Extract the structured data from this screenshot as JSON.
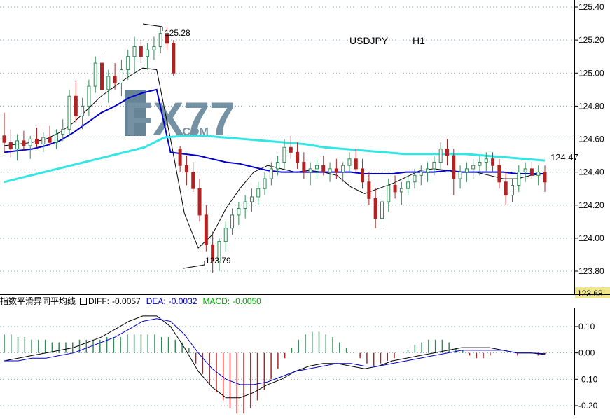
{
  "watermark": {
    "text": "FX77",
    "sub": ".COM"
  },
  "chart_data": [
    {
      "type": "candlestick",
      "title": "USDJPY",
      "timeframe": "H1",
      "ylim": [
        123.68,
        125.44
      ],
      "yticks": [
        123.8,
        124.0,
        124.2,
        124.4,
        124.6,
        124.8,
        125.0,
        125.2,
        125.4
      ],
      "ytick_labels": [
        "123.80",
        "124.00",
        "124.20",
        "124.40",
        "124.60",
        "124.80",
        "125.00",
        "125.20",
        "125.40"
      ],
      "axis_bottom_label": "123.68",
      "annotations": [
        {
          "text": "125.28",
          "value": 125.28,
          "kind": "high"
        },
        {
          "text": "123.79",
          "value": 123.79,
          "kind": "low"
        },
        {
          "text": "124.47",
          "value": 124.47,
          "kind": "ma-level"
        }
      ],
      "ohlc": [
        [
          124.62,
          124.76,
          124.52,
          124.58
        ],
        [
          124.58,
          124.66,
          124.49,
          124.54
        ],
        [
          124.54,
          124.63,
          124.47,
          124.59
        ],
        [
          124.59,
          124.65,
          124.53,
          124.56
        ],
        [
          124.56,
          124.62,
          124.48,
          124.6
        ],
        [
          124.6,
          124.67,
          124.55,
          124.57
        ],
        [
          124.57,
          124.64,
          124.52,
          124.61
        ],
        [
          124.61,
          124.68,
          124.56,
          124.58
        ],
        [
          124.58,
          124.66,
          124.54,
          124.63
        ],
        [
          124.63,
          124.72,
          124.59,
          124.66
        ],
        [
          124.66,
          124.9,
          124.62,
          124.86
        ],
        [
          124.86,
          124.95,
          124.7,
          124.74
        ],
        [
          124.74,
          124.85,
          124.66,
          124.8
        ],
        [
          124.8,
          124.96,
          124.74,
          124.92
        ],
        [
          124.92,
          125.1,
          124.88,
          125.06
        ],
        [
          125.06,
          125.12,
          124.86,
          124.9
        ],
        [
          124.9,
          125.02,
          124.82,
          124.98
        ],
        [
          124.98,
          125.06,
          124.9,
          124.94
        ],
        [
          124.94,
          125.08,
          124.86,
          125.02
        ],
        [
          125.02,
          125.14,
          124.96,
          125.1
        ],
        [
          125.1,
          125.22,
          125.0,
          125.16
        ],
        [
          125.16,
          125.2,
          125.06,
          125.1
        ],
        [
          125.1,
          125.18,
          125.02,
          125.14
        ],
        [
          125.14,
          125.22,
          125.08,
          125.16
        ],
        [
          125.16,
          125.28,
          125.12,
          125.24
        ],
        [
          125.24,
          125.28,
          125.14,
          125.18
        ],
        [
          125.18,
          125.2,
          124.98,
          125.0
        ],
        [
          124.54,
          124.56,
          124.4,
          124.44
        ],
        [
          124.44,
          124.5,
          124.32,
          124.4
        ],
        [
          124.4,
          124.46,
          124.28,
          124.3
        ],
        [
          124.3,
          124.36,
          124.1,
          124.14
        ],
        [
          124.14,
          124.2,
          123.92,
          123.96
        ],
        [
          123.96,
          124.04,
          123.79,
          123.86
        ],
        [
          123.86,
          124.0,
          123.8,
          123.98
        ],
        [
          123.98,
          124.1,
          123.92,
          124.06
        ],
        [
          124.06,
          124.18,
          124.02,
          124.14
        ],
        [
          124.14,
          124.22,
          124.08,
          124.18
        ],
        [
          124.18,
          124.26,
          124.12,
          124.22
        ],
        [
          124.22,
          124.3,
          124.16,
          124.25
        ],
        [
          124.25,
          124.34,
          124.2,
          124.3
        ],
        [
          124.3,
          124.4,
          124.26,
          124.36
        ],
        [
          124.36,
          124.46,
          124.32,
          124.42
        ],
        [
          124.42,
          124.5,
          124.38,
          124.46
        ],
        [
          124.46,
          124.6,
          124.42,
          124.55
        ],
        [
          124.55,
          124.62,
          124.48,
          124.52
        ],
        [
          124.52,
          124.58,
          124.42,
          124.46
        ],
        [
          124.46,
          124.52,
          124.36,
          124.4
        ],
        [
          124.4,
          124.46,
          124.32,
          124.42
        ],
        [
          124.42,
          124.48,
          124.36,
          124.44
        ],
        [
          124.44,
          124.5,
          124.38,
          124.4
        ],
        [
          124.4,
          124.46,
          124.34,
          124.42
        ],
        [
          124.42,
          124.48,
          124.36,
          124.4
        ],
        [
          124.4,
          124.46,
          124.34,
          124.44
        ],
        [
          124.44,
          124.52,
          124.4,
          124.48
        ],
        [
          124.48,
          124.54,
          124.4,
          124.42
        ],
        [
          124.42,
          124.48,
          124.3,
          124.34
        ],
        [
          124.34,
          124.4,
          124.2,
          124.24
        ],
        [
          124.24,
          124.3,
          124.06,
          124.12
        ],
        [
          124.12,
          124.26,
          124.08,
          124.22
        ],
        [
          124.22,
          124.36,
          124.16,
          124.32
        ],
        [
          124.32,
          124.38,
          124.24,
          124.28
        ],
        [
          124.28,
          124.34,
          124.2,
          124.3
        ],
        [
          124.3,
          124.38,
          124.26,
          124.34
        ],
        [
          124.34,
          124.42,
          124.3,
          124.38
        ],
        [
          124.38,
          124.44,
          124.32,
          124.4
        ],
        [
          124.4,
          124.46,
          124.34,
          124.42
        ],
        [
          124.42,
          124.5,
          124.38,
          124.46
        ],
        [
          124.46,
          124.58,
          124.42,
          124.54
        ],
        [
          124.54,
          124.6,
          124.44,
          124.5
        ],
        [
          124.5,
          124.54,
          124.26,
          124.36
        ],
        [
          124.36,
          124.44,
          124.3,
          124.4
        ],
        [
          124.4,
          124.46,
          124.34,
          124.42
        ],
        [
          124.42,
          124.48,
          124.36,
          124.44
        ],
        [
          124.44,
          124.5,
          124.38,
          124.46
        ],
        [
          124.46,
          124.52,
          124.4,
          124.48
        ],
        [
          124.48,
          124.52,
          124.4,
          124.44
        ],
        [
          124.44,
          124.48,
          124.3,
          124.34
        ],
        [
          124.34,
          124.4,
          124.2,
          124.26
        ],
        [
          124.26,
          124.36,
          124.22,
          124.32
        ],
        [
          124.32,
          124.44,
          124.28,
          124.4
        ],
        [
          124.4,
          124.46,
          124.34,
          124.42
        ],
        [
          124.42,
          124.46,
          124.36,
          124.38
        ],
        [
          124.38,
          124.44,
          124.32,
          124.4
        ],
        [
          124.4,
          124.44,
          124.28,
          124.34
        ]
      ],
      "ma_series": [
        {
          "color": "#000000",
          "values": [
            124.56,
            124.57,
            124.58,
            124.6,
            124.64,
            124.7,
            124.78,
            124.86,
            124.92,
            124.98,
            125.03,
            125.02,
            124.6,
            124.15,
            123.94,
            124.02,
            124.18,
            124.3,
            124.4,
            124.44,
            124.42,
            124.4,
            124.41,
            124.4,
            124.38,
            124.31,
            124.27,
            124.3,
            124.33,
            124.37,
            124.41,
            124.42,
            124.41,
            124.4,
            124.4,
            124.38,
            124.36,
            124.36,
            124.38,
            124.39
          ]
        },
        {
          "color": "#0000cc",
          "values": [
            124.52,
            124.53,
            124.54,
            124.56,
            124.59,
            124.64,
            124.7,
            124.76,
            124.8,
            124.85,
            124.88,
            124.9,
            124.52,
            124.51,
            124.5,
            124.48,
            124.46,
            124.45,
            124.43,
            124.41,
            124.4,
            124.4,
            124.4,
            124.4,
            124.4,
            124.4,
            124.39,
            124.39,
            124.39,
            124.4,
            124.4,
            124.4,
            124.41,
            124.4,
            124.4,
            124.4,
            124.4,
            124.39,
            124.39,
            124.39
          ]
        },
        {
          "color": "#33e6e6",
          "values": [
            124.34,
            124.37,
            124.4,
            124.43,
            124.46,
            124.49,
            124.52,
            124.55,
            124.61,
            124.62,
            124.62,
            124.61,
            124.6,
            124.59,
            124.58,
            124.57,
            124.55,
            124.54,
            124.53,
            124.52,
            124.51,
            124.51,
            124.51,
            124.51,
            124.5,
            124.49,
            124.48,
            124.47
          ]
        }
      ]
    },
    {
      "type": "bar",
      "title": "指数平滑异同平均线",
      "diff_label": "DIFF:",
      "diff_value": "-0.0057",
      "dea_label": "DEA:",
      "dea_value": "-0.0032",
      "macd_label": "MACD:",
      "macd_value": "-0.0050",
      "ylim": [
        -0.24,
        0.16
      ],
      "yticks": [
        -0.2,
        -0.1,
        0.0,
        0.1
      ],
      "ytick_labels": [
        "-0.20",
        "-0.10",
        "0.00",
        "0.10"
      ],
      "macd": [
        0.07,
        0.07,
        0.06,
        0.06,
        0.05,
        0.05,
        0.05,
        0.04,
        0.04,
        0.04,
        0.04,
        0.05,
        0.05,
        0.05,
        0.05,
        0.06,
        0.06,
        0.06,
        0.07,
        0.07,
        0.07,
        0.07,
        0.07,
        0.06,
        0.06,
        0.05,
        0.04,
        0.02,
        -0.04,
        -0.08,
        -0.12,
        -0.15,
        -0.18,
        -0.21,
        -0.23,
        -0.23,
        -0.21,
        -0.18,
        -0.14,
        -0.1,
        -0.06,
        -0.02,
        0.02,
        0.05,
        0.07,
        0.08,
        0.08,
        0.07,
        0.06,
        0.04,
        0.02,
        0.0,
        -0.02,
        -0.04,
        -0.05,
        -0.04,
        -0.03,
        -0.02,
        0.0,
        0.01,
        0.03,
        0.04,
        0.05,
        0.05,
        0.05,
        0.04,
        0.02,
        0.01,
        -0.01,
        -0.02,
        -0.02,
        -0.01,
        0.0,
        0.0,
        0.0,
        -0.01,
        0.0,
        0.0,
        -0.01,
        -0.005
      ],
      "diff": [
        -0.03,
        -0.02,
        -0.01,
        0.0,
        0.01,
        0.02,
        0.04,
        0.06,
        0.09,
        0.12,
        0.14,
        0.14,
        0.1,
        0.02,
        -0.07,
        -0.13,
        -0.17,
        -0.17,
        -0.15,
        -0.12,
        -0.1,
        -0.07,
        -0.05,
        -0.04,
        -0.04,
        -0.05,
        -0.06,
        -0.05,
        -0.03,
        -0.02,
        -0.01,
        0.0,
        0.01,
        0.02,
        0.02,
        0.02,
        0.01,
        0.0,
        0.0,
        -0.006
      ],
      "dea": [
        -0.03,
        -0.03,
        -0.02,
        -0.02,
        -0.01,
        0.0,
        0.02,
        0.04,
        0.06,
        0.09,
        0.12,
        0.13,
        0.12,
        0.07,
        0.0,
        -0.06,
        -0.1,
        -0.12,
        -0.12,
        -0.11,
        -0.09,
        -0.07,
        -0.06,
        -0.05,
        -0.04,
        -0.04,
        -0.05,
        -0.05,
        -0.04,
        -0.03,
        -0.02,
        -0.01,
        0.0,
        0.01,
        0.01,
        0.01,
        0.01,
        0.0,
        0.0,
        -0.003
      ]
    }
  ]
}
